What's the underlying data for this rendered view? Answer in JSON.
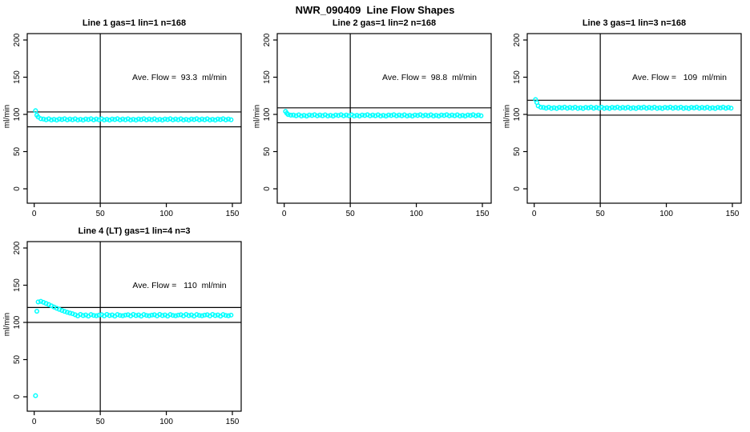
{
  "main_title": "NWR_090409  Line Flow Shapes",
  "point_color": "#00ffff",
  "line_color": "#000000",
  "chart_x": [
    1,
    2,
    3,
    5,
    7,
    9,
    11,
    13,
    15,
    17,
    19,
    21,
    23,
    25,
    27,
    29,
    31,
    33,
    35,
    37,
    39,
    41,
    43,
    45,
    47,
    49,
    51,
    53,
    55,
    57,
    59,
    61,
    63,
    65,
    67,
    69,
    71,
    73,
    75,
    77,
    79,
    81,
    83,
    85,
    87,
    89,
    91,
    93,
    95,
    97,
    99,
    101,
    103,
    105,
    107,
    109,
    111,
    113,
    115,
    117,
    119,
    121,
    123,
    125,
    127,
    129,
    131,
    133,
    135,
    137,
    139,
    141,
    143,
    145,
    147,
    149
  ],
  "chart_data": [
    {
      "type": "scatter",
      "title": "Line 1 gas=1 lin=1 n=168",
      "annotation": "Ave. Flow =  93.3  ml/min",
      "ave_flow": 93.3,
      "xlabel": "",
      "ylabel": "ml/min",
      "xlim": [
        -5,
        157
      ],
      "ylim": [
        -18,
        208
      ],
      "xticks": [
        0,
        50,
        100,
        150
      ],
      "yticks": [
        0,
        50,
        100,
        150,
        200
      ],
      "vline_x": 50,
      "hlines": [
        103.3,
        83.3
      ],
      "y": [
        105,
        99,
        96.5,
        94.2,
        93.7,
        92.8,
        94,
        92.5,
        93.4,
        92.4,
        93.8,
        93.1,
        94.1,
        92.7,
        93.7,
        92.8,
        94,
        92.5,
        93.4,
        92.4,
        93.8,
        93.1,
        94.1,
        92.7,
        93.7,
        92.8,
        94,
        92.5,
        93.4,
        92.4,
        93.8,
        93.1,
        94.1,
        92.7,
        93.7,
        92.8,
        94,
        92.5,
        93.4,
        92.4,
        93.8,
        93.1,
        94.1,
        92.7,
        93.7,
        92.8,
        94,
        92.5,
        93.4,
        92.4,
        93.8,
        93.1,
        94.1,
        92.7,
        93.7,
        92.8,
        94,
        92.5,
        93.4,
        92.4,
        93.8,
        93.1,
        94.1,
        92.7,
        93.7,
        92.8,
        94,
        92.5,
        93.4,
        92.4,
        93.8,
        93.1,
        94.1,
        92.7,
        93.7,
        92.8
      ]
    },
    {
      "type": "scatter",
      "title": "Line 2 gas=1 lin=2 n=168",
      "annotation": "Ave. Flow =  98.8  ml/min",
      "ave_flow": 98.8,
      "xlabel": "",
      "ylabel": "ml/min",
      "xlim": [
        -5,
        157
      ],
      "ylim": [
        -18,
        208
      ],
      "xticks": [
        0,
        50,
        100,
        150
      ],
      "yticks": [
        0,
        50,
        100,
        150,
        200
      ],
      "vline_x": 50,
      "hlines": [
        108.8,
        88.8
      ],
      "y": [
        104,
        101.5,
        99.8,
        99,
        99.1,
        98.2,
        99.4,
        97.9,
        98.8,
        97.8,
        99.2,
        98.5,
        99.5,
        98.1,
        99.1,
        98.2,
        99.4,
        97.9,
        98.8,
        97.8,
        99.2,
        98.5,
        99.5,
        98.1,
        99.1,
        98.2,
        99.4,
        97.9,
        98.8,
        97.8,
        99.2,
        98.5,
        99.5,
        98.1,
        99.1,
        98.2,
        99.4,
        97.9,
        98.8,
        97.8,
        99.2,
        98.5,
        99.5,
        98.1,
        99.1,
        98.2,
        99.4,
        97.9,
        98.8,
        97.8,
        99.2,
        98.5,
        99.5,
        98.1,
        99.1,
        98.2,
        99.4,
        97.9,
        98.8,
        97.8,
        99.2,
        98.5,
        99.5,
        98.1,
        99.1,
        98.2,
        99.4,
        97.9,
        98.8,
        97.8,
        99.2,
        98.5,
        99.5,
        98.1,
        99.1,
        98.2
      ]
    },
    {
      "type": "scatter",
      "title": "Line 3 gas=1 lin=3 n=168",
      "annotation": "Ave. Flow =   109  ml/min",
      "ave_flow": 109,
      "xlabel": "",
      "ylabel": "ml/min",
      "xlim": [
        -5,
        157
      ],
      "ylim": [
        -18,
        208
      ],
      "xticks": [
        0,
        50,
        100,
        150
      ],
      "yticks": [
        0,
        50,
        100,
        150,
        200
      ],
      "vline_x": 50,
      "hlines": [
        119,
        99
      ],
      "y": [
        120,
        116,
        111.5,
        109.6,
        109.3,
        108.4,
        109.6,
        108.1,
        109,
        108,
        109.4,
        108.7,
        109.7,
        108.3,
        109.3,
        108.4,
        109.6,
        108.1,
        109,
        108,
        109.4,
        108.7,
        109.7,
        108.3,
        109.3,
        108.4,
        109.6,
        108.1,
        109,
        108,
        109.4,
        108.7,
        109.7,
        108.3,
        109.3,
        108.4,
        109.6,
        108.1,
        109,
        108,
        109.4,
        108.7,
        109.7,
        108.3,
        109.3,
        108.4,
        109.6,
        108.1,
        109,
        108,
        109.4,
        108.7,
        109.7,
        108.3,
        109.3,
        108.4,
        109.6,
        108.1,
        109,
        108,
        109.4,
        108.7,
        109.7,
        108.3,
        109.3,
        108.4,
        109.6,
        108.1,
        109,
        108,
        109.4,
        108.7,
        109.7,
        108.3,
        109.3,
        108.4
      ]
    },
    {
      "type": "scatter",
      "title": "Line 4 (LT) gas=1 lin=4 n=3",
      "annotation": "Ave. Flow =   110  ml/min",
      "ave_flow": 110,
      "xlabel": "",
      "ylabel": "ml/min",
      "xlim": [
        -5,
        157
      ],
      "ylim": [
        -18,
        208
      ],
      "xticks": [
        0,
        50,
        100,
        150
      ],
      "yticks": [
        0,
        50,
        100,
        150,
        200
      ],
      "vline_x": 50,
      "hlines": [
        120,
        100
      ],
      "y": [
        1.5,
        115,
        127.5,
        128.3,
        127,
        125.5,
        124,
        122.3,
        120.6,
        119,
        117.5,
        116.1,
        114.8,
        113.6,
        112.6,
        111.7,
        110.3,
        108.8,
        110.7,
        109.2,
        110,
        108.5,
        110.5,
        109.4,
        108.9,
        109.8,
        110.3,
        108.8,
        110.7,
        109.2,
        110,
        108.5,
        110.5,
        109.4,
        108.9,
        109.8,
        110.3,
        108.8,
        110.7,
        109.2,
        110,
        108.5,
        110.5,
        109.4,
        108.9,
        109.8,
        110.3,
        108.8,
        110.7,
        109.2,
        110,
        108.5,
        110.5,
        109.4,
        108.9,
        109.8,
        110.3,
        108.8,
        110.7,
        109.2,
        110,
        108.5,
        110.5,
        109.4,
        108.9,
        109.8,
        110.3,
        108.8,
        110.7,
        109.2,
        110,
        108.5,
        110.5,
        109.4,
        108.9,
        109.8
      ]
    }
  ]
}
